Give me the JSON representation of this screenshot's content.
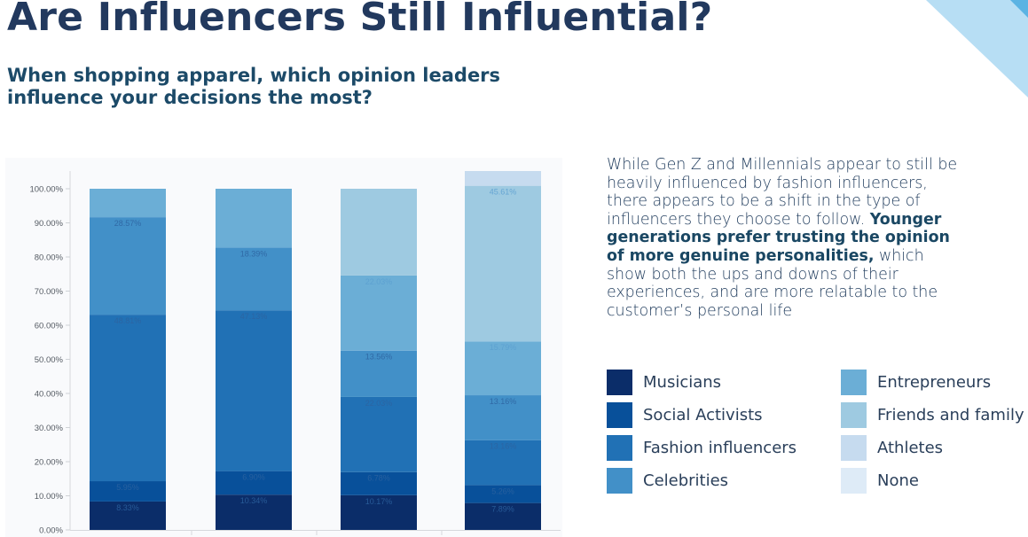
{
  "header": {
    "title": "Are Influencers Still Influential?",
    "subtitle": "When shopping apparel, which opinion leaders influence your decisions the most?"
  },
  "description": {
    "part1": "While Gen Z and Millennials appear to still be heavily influenced by fashion influencers, there appears to be a shift in the type of influencers they choose to follow. ",
    "bold": "Younger generations prefer trusting the opinion of more genuine personalities,",
    "part2": " which show both the ups and downs of their experiences, and are more relatable to the customer’s personal life"
  },
  "colors": {
    "title": "#22395e",
    "corner_light": "#b7def4",
    "corner_dark": "#5bb3e3"
  },
  "chart_data": {
    "type": "bar",
    "stacked": true,
    "title": "",
    "xlabel": "",
    "ylabel": "",
    "ylim": [
      0,
      100
    ],
    "y_ticks": [
      "0.00%",
      "10.00%",
      "20.00%",
      "30.00%",
      "40.00%",
      "50.00%",
      "60.00%",
      "70.00%",
      "80.00%",
      "90.00%",
      "100.00%"
    ],
    "categories": [
      "",
      "",
      "",
      ""
    ],
    "grid": false,
    "legend_position": "right",
    "series": [
      {
        "name": "Musicians",
        "color": "#0b2d69",
        "values": [
          8.33,
          10.34,
          10.17,
          7.89
        ],
        "labels": [
          "8.33%",
          "10.34%",
          "10.17%",
          "7.89%"
        ]
      },
      {
        "name": "Social Activists",
        "color": "#08509a",
        "values": [
          5.95,
          6.9,
          6.78,
          5.26
        ],
        "labels": [
          "5.95%",
          "6.90%",
          "6.78%",
          "5.26%"
        ]
      },
      {
        "name": "Fashion influencers",
        "color": "#2171b5",
        "values": [
          48.81,
          47.13,
          22.03,
          13.16
        ],
        "labels": [
          "48.81%",
          "47.13%",
          "22.03%",
          "13.16%"
        ]
      },
      {
        "name": "Celebrities",
        "color": "#4290c8",
        "values": [
          28.57,
          18.39,
          13.56,
          13.16
        ],
        "labels": [
          "28.57%",
          "18.39%",
          "13.56%",
          "13.16%"
        ]
      },
      {
        "name": "Entrepreneurs",
        "color": "#6baed6",
        "values": [
          8.34,
          17.24,
          22.03,
          15.79
        ],
        "labels": [
          "",
          "",
          "22.03%",
          "15.79%"
        ]
      },
      {
        "name": "Friends and family",
        "color": "#9ecae1",
        "values": [
          0,
          0,
          25.43,
          45.61
        ],
        "labels": [
          "",
          "",
          "",
          "45.61%"
        ]
      },
      {
        "name": "Athletes",
        "color": "#c6dbef",
        "values": [
          0,
          0,
          0,
          9.13
        ],
        "labels": [
          "",
          "",
          "",
          ""
        ]
      },
      {
        "name": "None",
        "color": "#deebf7",
        "values": [
          0,
          0,
          0,
          0
        ],
        "labels": [
          "",
          "",
          "",
          ""
        ]
      }
    ]
  }
}
